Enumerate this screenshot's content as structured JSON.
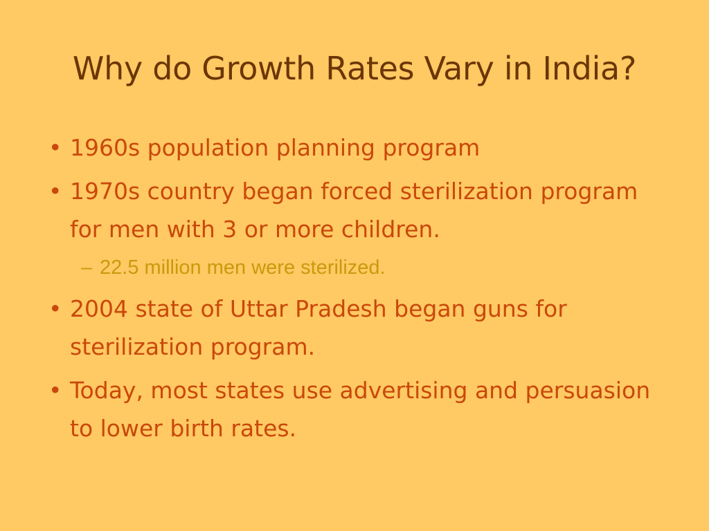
{
  "slide": {
    "title": "Why do Growth Rates Vary in India?",
    "bullets": [
      {
        "marker": "•",
        "text": "1960s population planning program"
      },
      {
        "marker": "•",
        "text": "1970s country began forced sterilization program for men with 3 or more children."
      },
      {
        "marker": "–",
        "text": "22.5 million men were sterilized."
      },
      {
        "marker": "•",
        "text": "2004 state of Uttar Pradesh began guns for sterilization program."
      },
      {
        "marker": "•",
        "text": "Today, most states use advertising and persuasion to lower birth rates."
      }
    ]
  },
  "colors": {
    "background": "#ffc963",
    "title": "#6b3606",
    "bullet_text": "#c9480b",
    "sub_bullet_text": "#c99a0c"
  }
}
